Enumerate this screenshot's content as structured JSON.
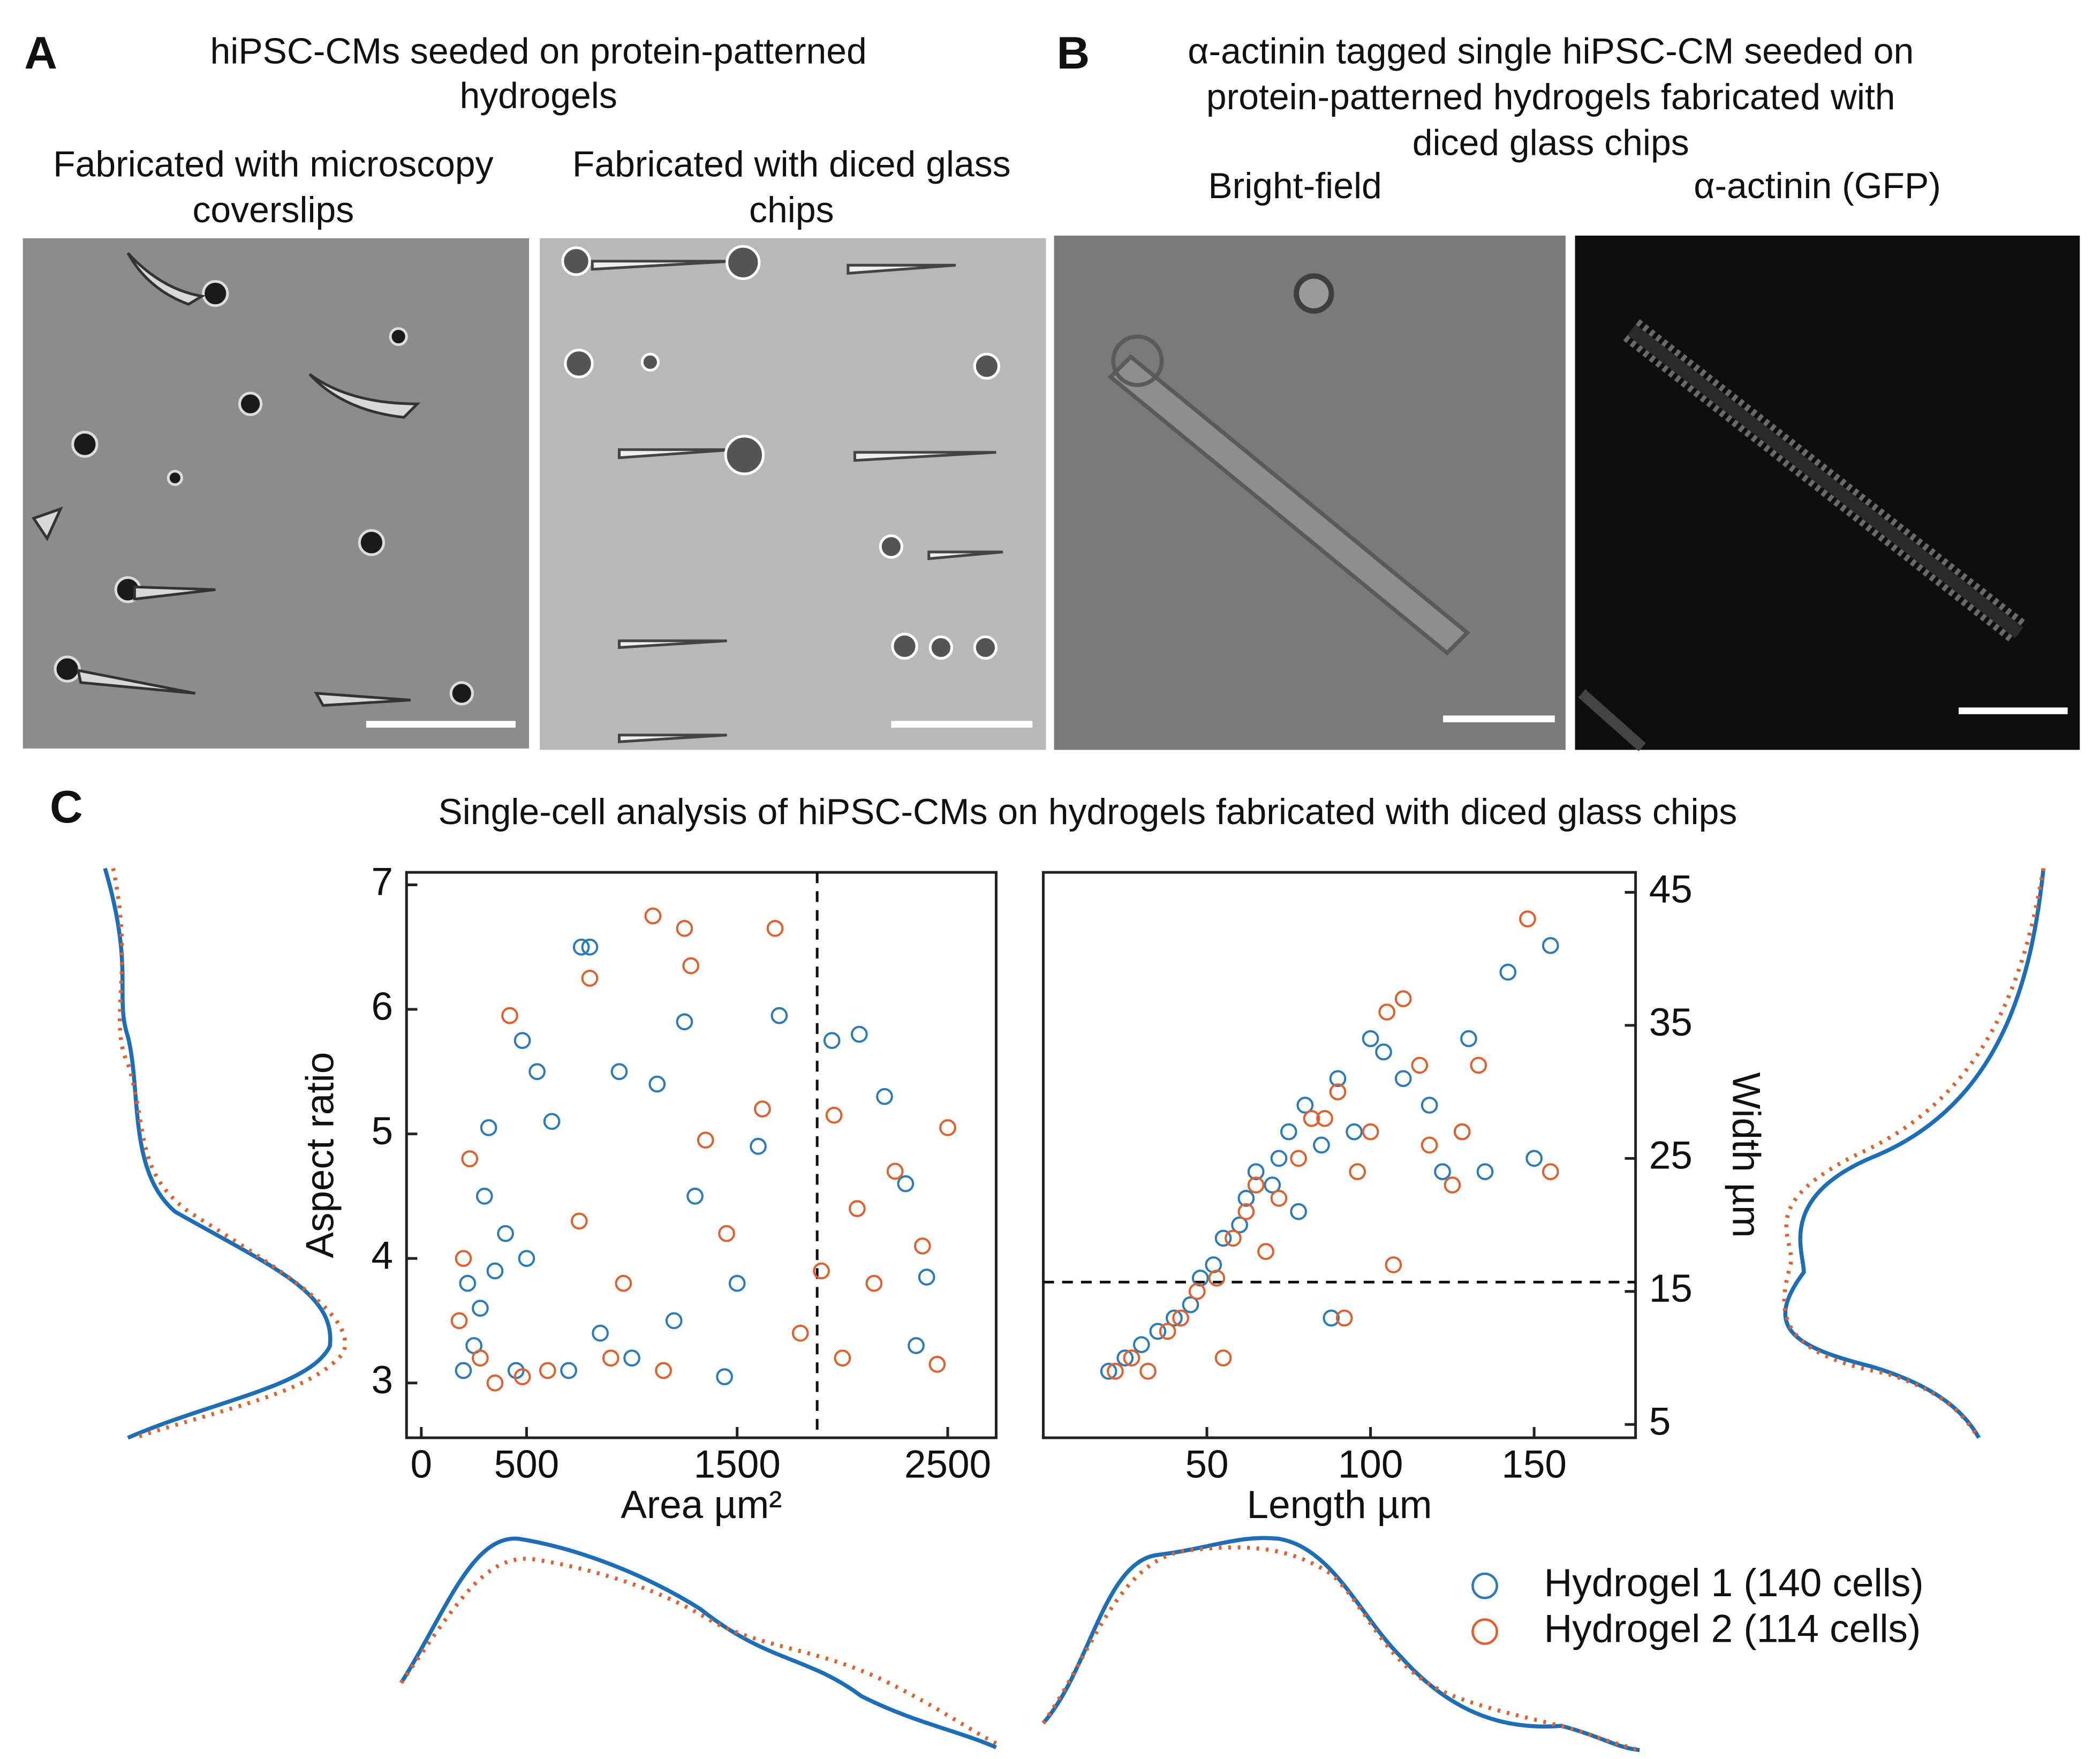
{
  "panels": {
    "A": {
      "label": "A",
      "title_lines": [
        "hiPSC-CMs seeded on protein-patterned",
        "hydrogels"
      ],
      "columns": [
        [
          "Fabricated with microscopy",
          "coverslips"
        ],
        [
          "Fabricated with diced glass",
          "chips"
        ]
      ]
    },
    "B": {
      "label": "B",
      "title_lines": [
        "α-actinin tagged single hiPSC-CM seeded on",
        "protein-patterned hydrogels fabricated with",
        "diced glass chips"
      ],
      "columns": [
        "Bright-field",
        "α-actinin (GFP)"
      ]
    },
    "C": {
      "label": "C",
      "title": "Single-cell analysis of hiPSC-CMs on hydrogels fabricated with diced glass chips"
    }
  },
  "chart_data": [
    {
      "type": "scatter",
      "x_label": "Area µm²",
      "y_label": "Aspect ratio",
      "xlim": [
        -70,
        2730
      ],
      "ylim": [
        2.56,
        7.1
      ],
      "xticks": [
        0,
        500,
        1500,
        2500
      ],
      "yticks": [
        3,
        4,
        5,
        6,
        7
      ],
      "y_axis_side": "left",
      "vline": 1880,
      "series": [
        {
          "color": "#2b7bba",
          "x": [
            200,
            220,
            250,
            280,
            300,
            320,
            350,
            400,
            450,
            480,
            500,
            550,
            620,
            700,
            760,
            800,
            850,
            940,
            1000,
            1120,
            1200,
            1250,
            1300,
            1440,
            1500,
            1600,
            1700,
            1950,
            2080,
            2200,
            2300,
            2350,
            2400
          ],
          "values": [
            3.1,
            3.8,
            3.3,
            3.6,
            4.5,
            5.05,
            3.9,
            4.2,
            3.1,
            5.75,
            4.0,
            5.5,
            5.1,
            3.1,
            6.5,
            6.5,
            3.4,
            5.5,
            3.2,
            5.4,
            3.5,
            5.9,
            4.5,
            3.05,
            3.8,
            4.9,
            5.95,
            5.75,
            5.8,
            5.3,
            4.6,
            3.3,
            3.85
          ]
        },
        {
          "color": "#e0602e",
          "x": [
            180,
            200,
            230,
            280,
            350,
            420,
            480,
            600,
            750,
            800,
            900,
            960,
            1100,
            1150,
            1250,
            1280,
            1350,
            1450,
            1620,
            1680,
            1800,
            1900,
            1960,
            2000,
            2070,
            2150,
            2250,
            2380,
            2450,
            2500
          ],
          "values": [
            3.5,
            4.0,
            4.8,
            3.2,
            3.0,
            5.95,
            3.05,
            3.1,
            4.3,
            6.25,
            3.2,
            3.8,
            6.75,
            3.1,
            6.65,
            6.35,
            4.95,
            4.2,
            5.2,
            6.65,
            3.4,
            3.9,
            5.15,
            3.2,
            4.4,
            3.8,
            4.7,
            4.1,
            3.15,
            5.05
          ]
        }
      ]
    },
    {
      "type": "scatter",
      "x_label": "Length µm",
      "y_label": "Width µm",
      "xlim": [
        0,
        181
      ],
      "ylim": [
        4,
        46.5
      ],
      "xticks": [
        50,
        100,
        150
      ],
      "yticks": [
        5,
        15,
        25,
        35,
        45
      ],
      "y_axis_side": "right",
      "hline": 15.7,
      "series": [
        {
          "name": "Hydrogel 1 (140 cells)",
          "color": "#2b7bba",
          "x": [
            20,
            25,
            30,
            35,
            40,
            45,
            48,
            52,
            55,
            60,
            62,
            65,
            70,
            72,
            75,
            78,
            80,
            85,
            88,
            90,
            95,
            100,
            104,
            110,
            118,
            122,
            128,
            130,
            135,
            142,
            150,
            155
          ],
          "values": [
            9,
            10,
            11,
            12,
            13,
            14,
            16,
            17,
            19,
            20,
            22,
            24,
            23,
            25,
            27,
            21,
            29,
            26,
            13,
            31,
            27,
            34,
            33,
            31,
            29,
            24,
            27,
            34,
            24,
            39,
            25,
            41
          ]
        },
        {
          "name": "Hydrogel 2 (114 cells)",
          "color": "#e0602e",
          "x": [
            22,
            27,
            32,
            38,
            42,
            47,
            53,
            55,
            58,
            62,
            65,
            68,
            72,
            78,
            82,
            86,
            90,
            92,
            96,
            100,
            105,
            107,
            110,
            115,
            118,
            125,
            128,
            133,
            148,
            155
          ],
          "values": [
            9,
            10,
            9,
            12,
            13,
            15,
            16,
            10,
            19,
            21,
            23,
            18,
            22,
            25,
            28,
            28,
            30,
            13,
            24,
            27,
            36,
            17,
            37,
            32,
            26,
            23,
            27,
            32,
            43,
            24
          ]
        }
      ]
    }
  ]
}
